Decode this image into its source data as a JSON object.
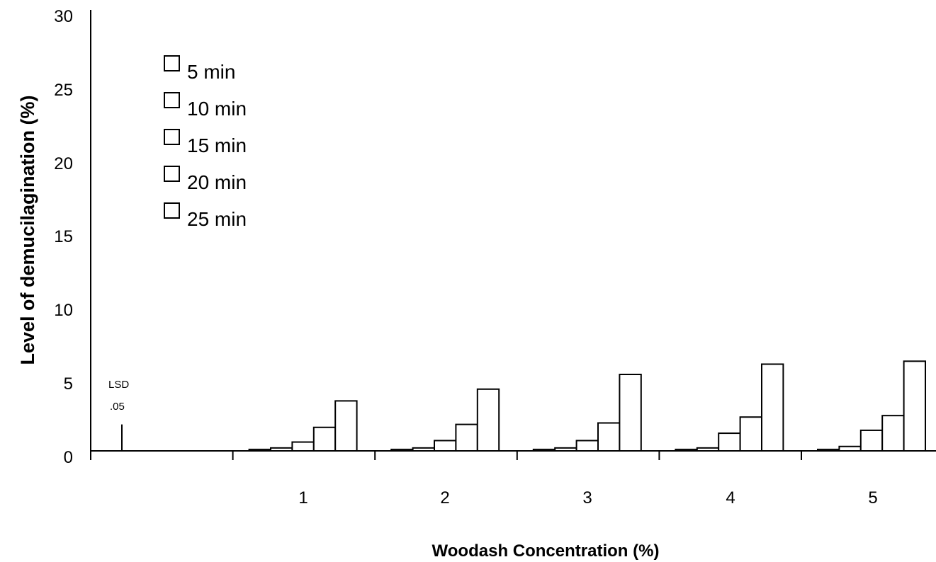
{
  "chart_data": {
    "type": "bar",
    "categories": [
      "",
      "1",
      "2",
      "3",
      "4",
      "5"
    ],
    "series": [
      {
        "name": "5 min",
        "values": [
          null,
          0.1,
          0.1,
          0.1,
          0.1,
          0.1
        ]
      },
      {
        "name": "10 min",
        "values": [
          null,
          0.2,
          0.2,
          0.2,
          0.2,
          0.3
        ]
      },
      {
        "name": "15 min",
        "values": [
          null,
          0.6,
          0.7,
          0.7,
          1.2,
          1.4
        ]
      },
      {
        "name": "20 min",
        "values": [
          null,
          1.6,
          1.8,
          1.9,
          2.3,
          2.4
        ]
      },
      {
        "name": "25 min",
        "values": [
          null,
          3.4,
          4.2,
          5.2,
          5.9,
          6.1
        ]
      }
    ],
    "xlabel": "Woodash Concentration (%)",
    "ylabel": "Level of demucilagination (%)",
    "ylim": [
      0,
      30
    ],
    "yticks": [
      "0",
      "5",
      "10",
      "15",
      "20",
      "25",
      "30"
    ],
    "lsd": {
      "label_line1": "LSD",
      "label_line2": ".05",
      "value": 1.8
    },
    "legend_placement": "top-left",
    "grid": false,
    "bar_fill": "#ffffff",
    "bar_stroke": "#000000"
  }
}
